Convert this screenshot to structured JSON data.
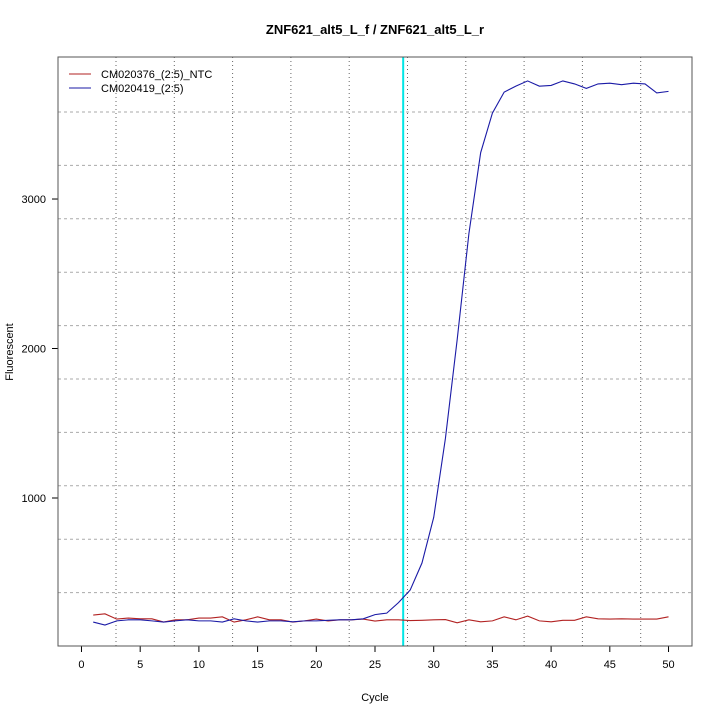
{
  "chart_data": {
    "type": "line",
    "title": "ZNF621_alt5_L_f / ZNF621_alt5_L_r",
    "xlabel": "Cycle",
    "ylabel": "Fluorescent",
    "xlim": [
      -2,
      52
    ],
    "ylim": [
      10,
      3950
    ],
    "xticks": [
      0,
      5,
      10,
      15,
      20,
      25,
      30,
      35,
      40,
      45,
      50
    ],
    "yticks": [
      1000,
      2000,
      3000
    ],
    "grid": true,
    "legend_position": "top-left",
    "threshold_cycle": 27.4,
    "threshold_color": "#00e5e5",
    "x": [
      1,
      2,
      3,
      4,
      5,
      6,
      7,
      8,
      9,
      10,
      11,
      12,
      13,
      14,
      15,
      16,
      17,
      18,
      19,
      20,
      21,
      22,
      23,
      24,
      25,
      26,
      27,
      28,
      29,
      30,
      31,
      32,
      33,
      34,
      35,
      36,
      37,
      38,
      39,
      40,
      41,
      42,
      43,
      44,
      45,
      46,
      47,
      48,
      49,
      50
    ],
    "series": [
      {
        "name": "CM020376_(2:5)_NTC",
        "color": "#b22222",
        "values": [
          217,
          225,
          190,
          197,
          192,
          192,
          170,
          185,
          185,
          197,
          197,
          205,
          170,
          185,
          205,
          185,
          185,
          170,
          178,
          190,
          178,
          185,
          185,
          190,
          177,
          185,
          185,
          180,
          182,
          185,
          187,
          165,
          185,
          172,
          178,
          205,
          185,
          210,
          178,
          172,
          182,
          182,
          205,
          192,
          190,
          192,
          190,
          190,
          190,
          205
        ]
      },
      {
        "name": "CM020419_(2:5)",
        "color": "#1a1aa6",
        "values": [
          170,
          150,
          178,
          185,
          185,
          178,
          170,
          178,
          185,
          178,
          178,
          170,
          192,
          178,
          170,
          178,
          178,
          172,
          178,
          178,
          182,
          185,
          185,
          192,
          220,
          230,
          300,
          385,
          565,
          870,
          1400,
          2060,
          2770,
          3310,
          3575,
          3715,
          3755,
          3790,
          3755,
          3760,
          3790,
          3770,
          3740,
          3770,
          3775,
          3765,
          3775,
          3770,
          3710,
          3720
        ]
      }
    ]
  }
}
